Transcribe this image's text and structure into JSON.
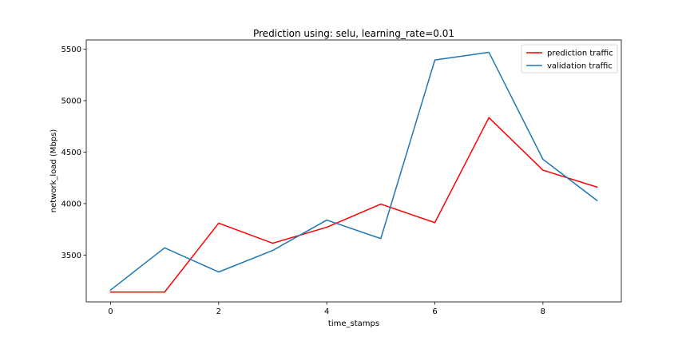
{
  "chart_data": {
    "type": "line",
    "title": "Prediction using: selu, learning_rate=0.01",
    "xlabel": "time_stamps",
    "ylabel": "network_load (Mbps)",
    "xlim": [
      -0.45,
      9.45
    ],
    "ylim": [
      3045,
      5590
    ],
    "xticks": [
      0,
      2,
      4,
      6,
      8
    ],
    "yticks": [
      3500,
      4000,
      4500,
      5000,
      5500
    ],
    "x": [
      0,
      1,
      2,
      3,
      4,
      5,
      6,
      7,
      8,
      9
    ],
    "grid": false,
    "legend_position": "top-right",
    "series": [
      {
        "name": "prediction traffic",
        "color": "#ff0000",
        "values": [
          3140,
          3140,
          3810,
          3615,
          3770,
          3995,
          3815,
          4835,
          4325,
          4160
        ]
      },
      {
        "name": "validation traffic",
        "color": "#1f77b4",
        "values": [
          3160,
          3570,
          3335,
          3545,
          3840,
          3660,
          5395,
          5470,
          4430,
          4030
        ]
      }
    ]
  }
}
